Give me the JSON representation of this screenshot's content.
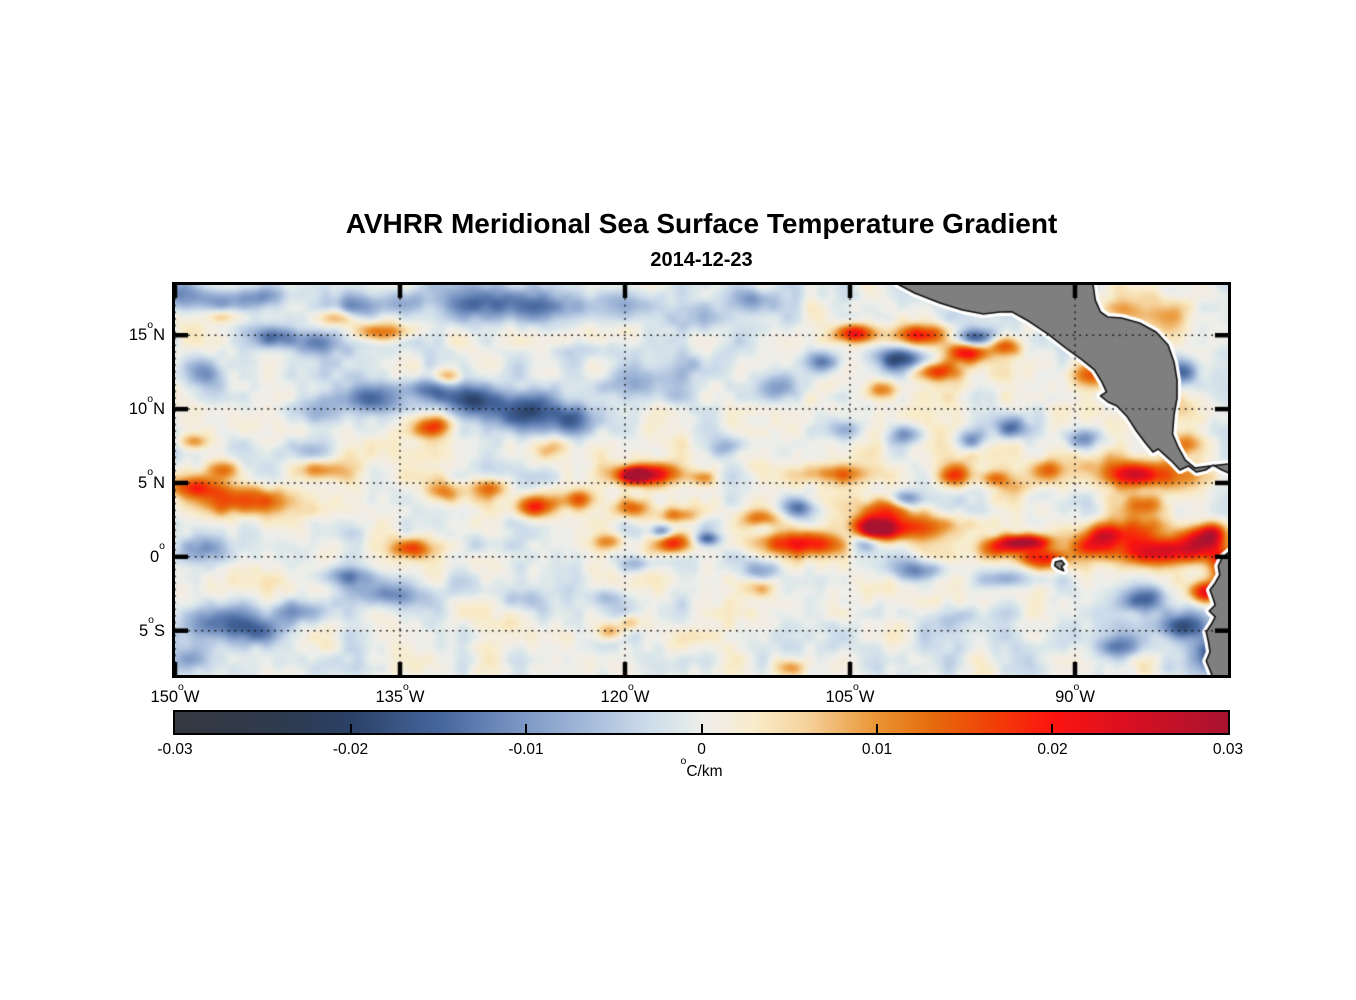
{
  "chart_data": {
    "type": "heatmap",
    "title": "AVHRR Meridional Sea Surface Temperature Gradient",
    "subtitle": "2014-12-23",
    "colorbar": {
      "unit_sup": "o",
      "unit_rest": "C/km",
      "min": -0.03,
      "max": 0.03,
      "tick_labels": [
        {
          "value": -0.03,
          "label": "-0.03"
        },
        {
          "value": -0.02,
          "label": "-0.02"
        },
        {
          "value": -0.01,
          "label": "-0.01"
        },
        {
          "value": 0,
          "label": "0"
        },
        {
          "value": 0.01,
          "label": "0.01"
        },
        {
          "value": 0.02,
          "label": "0.02"
        },
        {
          "value": 0.03,
          "label": "0.03"
        }
      ],
      "inner_tick_values": [
        -0.02,
        -0.01,
        0,
        0.01,
        0.02
      ]
    },
    "extent": {
      "lon_min": -150,
      "lon_max": -79.8,
      "lat_min": -8.0,
      "lat_max": 18.4
    },
    "x_axis": {
      "ticks": [
        {
          "deg": -150,
          "num": "150",
          "hemi": "W"
        },
        {
          "deg": -135,
          "num": "135",
          "hemi": "W"
        },
        {
          "deg": -120,
          "num": "120",
          "hemi": "W"
        },
        {
          "deg": -105,
          "num": "105",
          "hemi": "W"
        },
        {
          "deg": -90,
          "num": "90",
          "hemi": "W"
        }
      ]
    },
    "y_axis": {
      "ticks": [
        {
          "deg": 15,
          "num": "15",
          "hemi": "N"
        },
        {
          "deg": 10,
          "num": "10",
          "hemi": "N"
        },
        {
          "deg": 5,
          "num": "5",
          "hemi": "N"
        },
        {
          "deg": 0,
          "num": "0",
          "hemi": ""
        },
        {
          "deg": -5,
          "num": "5",
          "hemi": "S"
        }
      ]
    },
    "grid": {
      "on": true,
      "style": "dotted",
      "color": "#1a1a1a"
    },
    "colormap_stops": [
      [
        -0.03,
        "#343840"
      ],
      [
        -0.024,
        "#2e3a4d"
      ],
      [
        -0.02,
        "#2b4166"
      ],
      [
        -0.015,
        "#44659c"
      ],
      [
        -0.01,
        "#7e99c6"
      ],
      [
        -0.006,
        "#aabfdc"
      ],
      [
        -0.003,
        "#cedceb"
      ],
      [
        -0.0012,
        "#dde8e9"
      ],
      [
        0.0,
        "#edeeea"
      ],
      [
        0.0012,
        "#f3ece2"
      ],
      [
        0.003,
        "#f8ecca"
      ],
      [
        0.006,
        "#f5d29b"
      ],
      [
        0.01,
        "#ea9434"
      ],
      [
        0.013,
        "#e56d0d"
      ],
      [
        0.017,
        "#f23b07"
      ],
      [
        0.02,
        "#fc1410"
      ],
      [
        0.024,
        "#dc1021"
      ],
      [
        0.03,
        "#a81330"
      ]
    ],
    "noise": {
      "seed": 7,
      "amp1": 0.0036,
      "scale1": 0.55,
      "amp2": 0.0016,
      "scale2": 1.3
    },
    "field_blobs": [
      [
        -149.5,
        17.8,
        1.0,
        0.7,
        -0.013
      ],
      [
        -146.8,
        17.3,
        1.2,
        0.6,
        -0.01
      ],
      [
        -144.3,
        17.6,
        0.9,
        0.5,
        -0.009
      ],
      [
        -137.9,
        16.9,
        1.2,
        0.6,
        -0.013
      ],
      [
        -134.7,
        17.4,
        1.0,
        0.6,
        -0.008
      ],
      [
        -129.5,
        17.4,
        2.2,
        0.9,
        -0.013
      ],
      [
        -125.8,
        16.8,
        2.0,
        0.8,
        -0.011
      ],
      [
        -120.0,
        17.2,
        2.0,
        0.8,
        -0.009
      ],
      [
        -116.3,
        16.1,
        1.2,
        0.6,
        -0.008
      ],
      [
        -111.3,
        17.4,
        1.0,
        0.6,
        -0.01
      ],
      [
        -143.4,
        14.9,
        1.0,
        0.5,
        -0.013
      ],
      [
        -140.6,
        14.5,
        1.2,
        0.55,
        -0.012
      ],
      [
        -148.3,
        12.5,
        1.0,
        0.8,
        -0.013
      ],
      [
        -136.7,
        10.75,
        1.2,
        0.7,
        -0.018
      ],
      [
        -133.0,
        11.3,
        1.0,
        0.6,
        -0.012
      ],
      [
        -130.0,
        10.6,
        1.3,
        0.8,
        -0.02
      ],
      [
        -126.7,
        9.8,
        1.5,
        0.9,
        -0.018
      ],
      [
        -123.5,
        9.3,
        1.0,
        0.7,
        -0.012
      ],
      [
        -140.5,
        9.9,
        1.2,
        0.6,
        -0.008
      ],
      [
        -122.3,
        14.0,
        1.8,
        0.5,
        -0.007
      ],
      [
        -119.0,
        11.6,
        2.0,
        0.8,
        -0.008
      ],
      [
        -115.0,
        12.9,
        1.5,
        0.7,
        -0.007
      ],
      [
        -109.7,
        11.4,
        1.2,
        0.7,
        -0.012
      ],
      [
        -106.9,
        13.2,
        0.8,
        0.5,
        -0.013
      ],
      [
        -101.7,
        13.4,
        1.2,
        0.55,
        -0.017
      ],
      [
        -96.7,
        14.75,
        1.1,
        0.5,
        -0.019
      ],
      [
        -105.3,
        8.7,
        0.8,
        0.6,
        -0.011
      ],
      [
        -101.2,
        8.3,
        0.9,
        0.5,
        -0.013
      ],
      [
        -96.9,
        7.9,
        0.8,
        0.55,
        -0.015
      ],
      [
        -94.3,
        8.7,
        0.7,
        0.5,
        -0.012
      ],
      [
        -89.4,
        8.0,
        0.9,
        0.5,
        -0.011
      ],
      [
        -82.7,
        12.5,
        0.7,
        0.6,
        -0.014
      ],
      [
        -113.3,
        7.5,
        0.8,
        0.5,
        -0.009
      ],
      [
        -117.5,
        1.7,
        0.5,
        0.3,
        -0.012
      ],
      [
        -114.5,
        1.2,
        0.6,
        0.3,
        -0.013
      ],
      [
        -110.8,
        1.9,
        0.7,
        0.4,
        -0.009
      ],
      [
        -108.3,
        3.3,
        0.8,
        0.5,
        -0.014
      ],
      [
        -104.0,
        1.0,
        0.8,
        0.5,
        -0.016
      ],
      [
        -101.3,
        3.9,
        0.7,
        0.45,
        -0.012
      ],
      [
        -100.5,
        -0.9,
        1.2,
        0.5,
        -0.014
      ],
      [
        -148.0,
        0.6,
        1.0,
        0.6,
        -0.009
      ],
      [
        -147.3,
        -4.6,
        1.6,
        0.9,
        -0.015
      ],
      [
        -144.3,
        -5.1,
        1.3,
        0.7,
        -0.014
      ],
      [
        -142.0,
        -3.7,
        1.1,
        0.6,
        -0.013
      ],
      [
        -149.0,
        -7.0,
        1.0,
        0.7,
        -0.011
      ],
      [
        -138.5,
        -1.3,
        1.3,
        0.5,
        -0.011
      ],
      [
        -135.5,
        -2.6,
        1.5,
        0.6,
        -0.013
      ],
      [
        -127.0,
        -2.9,
        1.0,
        0.6,
        -0.008
      ],
      [
        -121.3,
        -2.8,
        0.9,
        0.5,
        -0.008
      ],
      [
        -119.0,
        -0.4,
        1.0,
        0.4,
        -0.008
      ],
      [
        -115.0,
        5.2,
        1.2,
        0.7,
        -0.006
      ],
      [
        -111.0,
        -0.9,
        0.8,
        0.5,
        -0.009
      ],
      [
        -94.5,
        -1.5,
        1.2,
        0.5,
        -0.009
      ],
      [
        -98.3,
        -4.1,
        1.3,
        0.6,
        -0.007
      ],
      [
        -85.3,
        -2.9,
        1.0,
        0.6,
        -0.015
      ],
      [
        -82.7,
        -4.8,
        1.2,
        0.7,
        -0.02
      ],
      [
        -80.7,
        -6.6,
        1.0,
        0.8,
        -0.018
      ],
      [
        -87.0,
        -6.1,
        1.0,
        0.6,
        -0.01
      ],
      [
        -141.3,
        7.2,
        1.0,
        0.6,
        -0.007
      ],
      [
        -129.7,
        0.8,
        0.9,
        0.5,
        -0.006
      ],
      [
        -92.5,
        4.3,
        0.9,
        0.5,
        -0.008
      ],
      [
        -146.8,
        16.3,
        0.9,
        0.35,
        0.008
      ],
      [
        -139.3,
        16.2,
        0.7,
        0.4,
        0.011
      ],
      [
        -136.2,
        15.2,
        1.3,
        0.45,
        0.015
      ],
      [
        -131.8,
        12.2,
        0.7,
        0.4,
        0.012
      ],
      [
        -132.8,
        8.8,
        0.9,
        0.5,
        0.016
      ],
      [
        -148.8,
        7.8,
        0.7,
        0.4,
        0.011
      ],
      [
        -146.7,
        5.9,
        0.8,
        0.45,
        0.011
      ],
      [
        -148.7,
        4.7,
        1.2,
        0.5,
        0.015
      ],
      [
        -145.3,
        3.8,
        1.9,
        0.7,
        0.019
      ],
      [
        -140.3,
        5.9,
        1.2,
        0.5,
        0.013
      ],
      [
        -134.3,
        0.6,
        1.0,
        0.5,
        0.018
      ],
      [
        -132.0,
        4.4,
        0.8,
        0.5,
        0.012
      ],
      [
        -129.0,
        4.7,
        0.9,
        0.5,
        0.014
      ],
      [
        -126.0,
        3.45,
        1.0,
        0.55,
        0.019
      ],
      [
        -123.0,
        3.9,
        0.8,
        0.5,
        0.014
      ],
      [
        -119.5,
        3.3,
        0.9,
        0.5,
        0.014
      ],
      [
        -116.5,
        2.8,
        1.0,
        0.4,
        0.012
      ],
      [
        -118.5,
        5.6,
        1.6,
        0.5,
        0.022
      ],
      [
        -119.3,
        5.5,
        0.6,
        0.35,
        0.026
      ],
      [
        -114.7,
        5.3,
        0.7,
        0.4,
        0.012
      ],
      [
        -116.7,
        0.9,
        0.9,
        0.5,
        0.02
      ],
      [
        -121.0,
        1.05,
        0.8,
        0.4,
        0.01
      ],
      [
        -111.0,
        2.5,
        0.9,
        0.5,
        0.013
      ],
      [
        -108.0,
        0.9,
        2.2,
        0.6,
        0.02
      ],
      [
        -106.0,
        5.6,
        1.8,
        0.5,
        0.014
      ],
      [
        -102.5,
        3.3,
        1.1,
        0.5,
        0.013
      ],
      [
        -101.5,
        2.0,
        2.5,
        0.7,
        0.02
      ],
      [
        -103.2,
        1.9,
        0.9,
        0.5,
        0.024
      ],
      [
        -97.9,
        5.5,
        0.8,
        0.5,
        0.013
      ],
      [
        -95.3,
        5.3,
        0.7,
        0.4,
        0.012
      ],
      [
        -104.7,
        15.1,
        1.0,
        0.45,
        0.022
      ],
      [
        -100.3,
        15.0,
        1.3,
        0.5,
        0.02
      ],
      [
        -97.1,
        13.9,
        1.0,
        0.5,
        0.024
      ],
      [
        -94.7,
        14.3,
        0.8,
        0.45,
        0.016
      ],
      [
        -99.3,
        12.55,
        1.0,
        0.45,
        0.018
      ],
      [
        -103.0,
        11.3,
        0.8,
        0.45,
        0.012
      ],
      [
        -89.0,
        12.3,
        0.8,
        0.5,
        0.012
      ],
      [
        -87.0,
        16.7,
        0.8,
        0.5,
        0.009
      ],
      [
        -84.0,
        16.5,
        2.0,
        1.0,
        0.006
      ],
      [
        -95.0,
        0.5,
        1.0,
        0.5,
        0.016
      ],
      [
        -93.3,
        1.0,
        1.2,
        0.35,
        0.028
      ],
      [
        -92.0,
        -0.1,
        1.2,
        0.5,
        0.02
      ],
      [
        -89.0,
        0.7,
        1.0,
        0.5,
        0.014
      ],
      [
        -88.2,
        1.5,
        0.9,
        0.5,
        0.016
      ],
      [
        -85.7,
        1.7,
        1.6,
        0.8,
        0.015
      ],
      [
        -84.3,
        0.3,
        2.0,
        0.6,
        0.021
      ],
      [
        -81.7,
        1.05,
        1.0,
        0.7,
        0.021
      ],
      [
        -80.8,
        1.6,
        0.7,
        0.5,
        0.019
      ],
      [
        -80.0,
        -0.6,
        0.7,
        0.8,
        0.016
      ],
      [
        -81.3,
        -2.4,
        0.7,
        0.5,
        0.023
      ],
      [
        -85.3,
        3.5,
        1.0,
        0.5,
        0.012
      ],
      [
        -84.5,
        5.5,
        2.5,
        0.8,
        0.011
      ],
      [
        -86.0,
        5.6,
        1.0,
        0.5,
        0.013
      ],
      [
        -82.5,
        7.6,
        0.9,
        0.6,
        0.014
      ],
      [
        -91.9,
        5.9,
        0.8,
        0.5,
        0.012
      ],
      [
        -93.0,
        4.5,
        1.5,
        0.8,
        0.009
      ],
      [
        -88.3,
        6.4,
        2.0,
        1.0,
        0.006
      ],
      [
        -82.3,
        9.9,
        1.5,
        1.0,
        0.006
      ],
      [
        -121.0,
        -5.0,
        0.6,
        0.4,
        0.01
      ],
      [
        -119.7,
        -4.4,
        0.5,
        0.4,
        0.009
      ],
      [
        -111.0,
        -2.1,
        0.8,
        0.45,
        0.009
      ],
      [
        -109.0,
        -7.5,
        0.8,
        0.4,
        0.01
      ],
      [
        -124.7,
        7.4,
        0.8,
        0.5,
        0.006
      ],
      [
        -98.0,
        7.5,
        2.5,
        1.2,
        0.005
      ]
    ],
    "land": {
      "fill": "#7f7f7f",
      "outline": "#111111",
      "coast_halo": "#ffffff",
      "polygons": {
        "mexico_central_america": [
          [
            -101.8,
            18.45
          ],
          [
            -100.7,
            17.86
          ],
          [
            -99.0,
            17.18
          ],
          [
            -97.5,
            16.71
          ],
          [
            -96.1,
            16.44
          ],
          [
            -95.0,
            16.57
          ],
          [
            -94.2,
            16.58
          ],
          [
            -93.1,
            15.96
          ],
          [
            -91.8,
            15.08
          ],
          [
            -90.6,
            14.13
          ],
          [
            -89.5,
            13.32
          ],
          [
            -88.7,
            12.65
          ],
          [
            -88.2,
            11.83
          ],
          [
            -87.9,
            11.16
          ],
          [
            -88.3,
            10.89
          ],
          [
            -87.8,
            10.48
          ],
          [
            -87.2,
            10.21
          ],
          [
            -86.5,
            9.46
          ],
          [
            -85.9,
            8.52
          ],
          [
            -85.3,
            7.7
          ],
          [
            -84.8,
            7.09
          ],
          [
            -84.45,
            7.3
          ],
          [
            -84.0,
            6.89
          ],
          [
            -83.5,
            6.42
          ],
          [
            -83.0,
            5.88
          ],
          [
            -82.45,
            6.15
          ],
          [
            -81.9,
            5.74
          ],
          [
            -81.3,
            5.88
          ],
          [
            -80.8,
            6.21
          ],
          [
            -80.2,
            5.88
          ],
          [
            -79.6,
            5.61
          ],
          [
            -79.6,
            6.3
          ],
          [
            -81.0,
            6.15
          ],
          [
            -82.0,
            6.01
          ],
          [
            -82.65,
            6.55
          ],
          [
            -83.1,
            7.37
          ],
          [
            -83.5,
            8.31
          ],
          [
            -83.4,
            9.6
          ],
          [
            -83.2,
            10.75
          ],
          [
            -83.2,
            11.97
          ],
          [
            -83.4,
            13.19
          ],
          [
            -83.8,
            14.34
          ],
          [
            -84.6,
            15.22
          ],
          [
            -85.7,
            15.83
          ],
          [
            -86.9,
            16.17
          ],
          [
            -87.8,
            16.23
          ],
          [
            -88.3,
            16.57
          ],
          [
            -88.65,
            17.38
          ],
          [
            -88.8,
            18.45
          ]
        ],
        "south_america": [
          [
            -79.6,
            0.45
          ],
          [
            -80.2,
            -0.08
          ],
          [
            -80.45,
            -0.62
          ],
          [
            -80.35,
            -1.23
          ],
          [
            -80.65,
            -1.77
          ],
          [
            -81.0,
            -2.25
          ],
          [
            -80.8,
            -2.79
          ],
          [
            -80.65,
            -3.26
          ],
          [
            -81.05,
            -3.67
          ],
          [
            -80.65,
            -4.07
          ],
          [
            -80.9,
            -4.55
          ],
          [
            -81.25,
            -5.09
          ],
          [
            -81.1,
            -5.77
          ],
          [
            -81.0,
            -6.44
          ],
          [
            -81.25,
            -7.05
          ],
          [
            -81.0,
            -7.66
          ],
          [
            -80.8,
            -8.2
          ],
          [
            -79.6,
            -8.2
          ]
        ],
        "galapagos": [
          [
            -91.3,
            -0.35
          ],
          [
            -90.9,
            -0.25
          ],
          [
            -90.7,
            -0.5
          ],
          [
            -90.9,
            -0.65
          ],
          [
            -90.75,
            -0.95
          ],
          [
            -91.1,
            -0.8
          ],
          [
            -91.35,
            -0.6
          ]
        ]
      }
    }
  }
}
